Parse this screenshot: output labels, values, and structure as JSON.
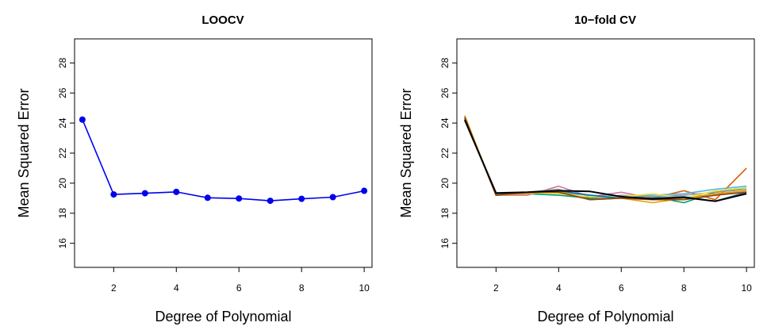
{
  "chart_data": [
    {
      "type": "line",
      "title": "LOOCV",
      "xlabel": "Degree of Polynomial",
      "ylabel": "Mean Squared Error",
      "x": [
        1,
        2,
        3,
        4,
        5,
        6,
        7,
        8,
        9,
        10
      ],
      "xticks": [
        2,
        4,
        6,
        8,
        10
      ],
      "yticks": [
        16,
        18,
        20,
        22,
        24,
        26,
        28
      ],
      "xlim": [
        0.75,
        10.25
      ],
      "ylim": [
        14.4,
        29.6
      ],
      "grid": false,
      "markers": true,
      "series": [
        {
          "color": "#0000ee",
          "values": [
            24.23,
            19.25,
            19.33,
            19.42,
            19.03,
            18.98,
            18.83,
            18.96,
            19.07,
            19.49
          ]
        }
      ]
    },
    {
      "type": "line",
      "title": "10−fold CV",
      "xlabel": "Degree of Polynomial",
      "ylabel": "Mean Squared Error",
      "x": [
        1,
        2,
        3,
        4,
        5,
        6,
        7,
        8,
        9,
        10
      ],
      "xticks": [
        2,
        4,
        6,
        8,
        10
      ],
      "yticks": [
        16,
        18,
        20,
        22,
        24,
        26,
        28
      ],
      "xlim": [
        0.75,
        10.25
      ],
      "ylim": [
        14.4,
        29.6
      ],
      "grid": false,
      "markers": false,
      "series": [
        {
          "color": "#d55e00",
          "values": [
            24.4,
            19.2,
            19.3,
            19.5,
            19.0,
            19.1,
            19.0,
            19.5,
            18.9,
            21.0
          ]
        },
        {
          "color": "#56b4e9",
          "values": [
            24.3,
            19.3,
            19.3,
            19.4,
            19.2,
            19.1,
            19.2,
            19.3,
            19.6,
            19.8
          ]
        },
        {
          "color": "#009e73",
          "values": [
            24.2,
            19.3,
            19.3,
            19.2,
            19.0,
            19.0,
            19.1,
            18.7,
            19.4,
            19.7
          ]
        },
        {
          "color": "#cc79a7",
          "values": [
            24.3,
            19.2,
            19.2,
            19.8,
            19.1,
            19.4,
            19.0,
            18.9,
            19.2,
            19.5
          ]
        },
        {
          "color": "#999999",
          "values": [
            24.4,
            19.3,
            19.4,
            19.6,
            18.9,
            19.2,
            19.1,
            19.2,
            19.4,
            19.6
          ]
        },
        {
          "color": "#e69f00",
          "values": [
            24.5,
            19.2,
            19.3,
            19.5,
            18.9,
            19.0,
            18.7,
            19.0,
            19.3,
            19.5
          ]
        },
        {
          "color": "#f0e442",
          "values": [
            24.4,
            19.3,
            19.4,
            19.3,
            19.1,
            19.1,
            19.3,
            19.0,
            19.5,
            19.7
          ]
        },
        {
          "color": "#0072b2",
          "values": [
            24.3,
            19.3,
            19.4,
            19.5,
            19.2,
            19.0,
            19.0,
            19.1,
            18.8,
            19.4
          ]
        },
        {
          "color": "#8b4513",
          "values": [
            24.4,
            19.2,
            19.4,
            19.4,
            18.9,
            19.0,
            18.9,
            18.9,
            19.2,
            19.4
          ]
        },
        {
          "color": "#000000",
          "values": [
            24.2,
            19.35,
            19.4,
            19.5,
            19.45,
            19.1,
            18.95,
            19.05,
            18.8,
            19.3
          ]
        }
      ]
    }
  ]
}
